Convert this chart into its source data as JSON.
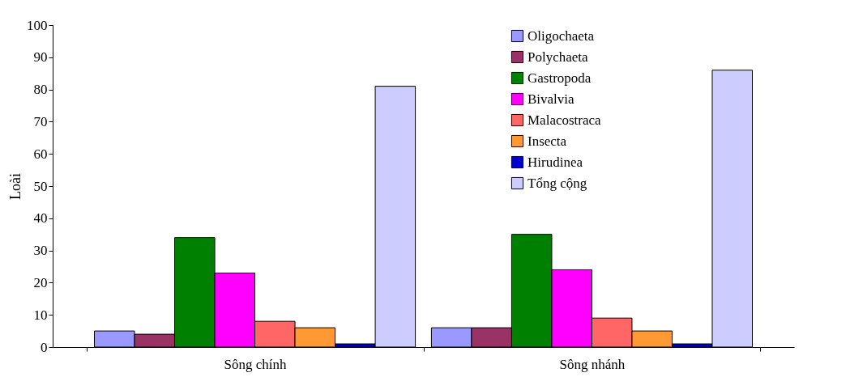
{
  "chart_data": {
    "type": "bar",
    "ylabel": "Loài",
    "categories": [
      "Sông chính",
      "Sông nhánh"
    ],
    "series": [
      {
        "name": "Oligochaeta",
        "color": "#9999ff",
        "values": [
          5,
          6
        ]
      },
      {
        "name": "Polychaeta",
        "color": "#993366",
        "values": [
          4,
          6
        ]
      },
      {
        "name": "Gastropoda",
        "color": "#008000",
        "values": [
          34,
          35
        ]
      },
      {
        "name": "Bivalvia",
        "color": "#ff00ff",
        "values": [
          23,
          24
        ]
      },
      {
        "name": "Malacostraca",
        "color": "#ff6666",
        "values": [
          8,
          9
        ]
      },
      {
        "name": "Insecta",
        "color": "#ff9933",
        "values": [
          6,
          5
        ]
      },
      {
        "name": "Hirudinea",
        "color": "#0000cc",
        "values": [
          1,
          1
        ]
      },
      {
        "name": "Tổng cộng",
        "color": "#ccccff",
        "values": [
          81,
          86
        ]
      }
    ],
    "ylim": [
      0,
      100
    ],
    "yticks": [
      0,
      10,
      20,
      30,
      40,
      50,
      60,
      70,
      80,
      90,
      100
    ],
    "grid": false,
    "legend": "top right"
  }
}
